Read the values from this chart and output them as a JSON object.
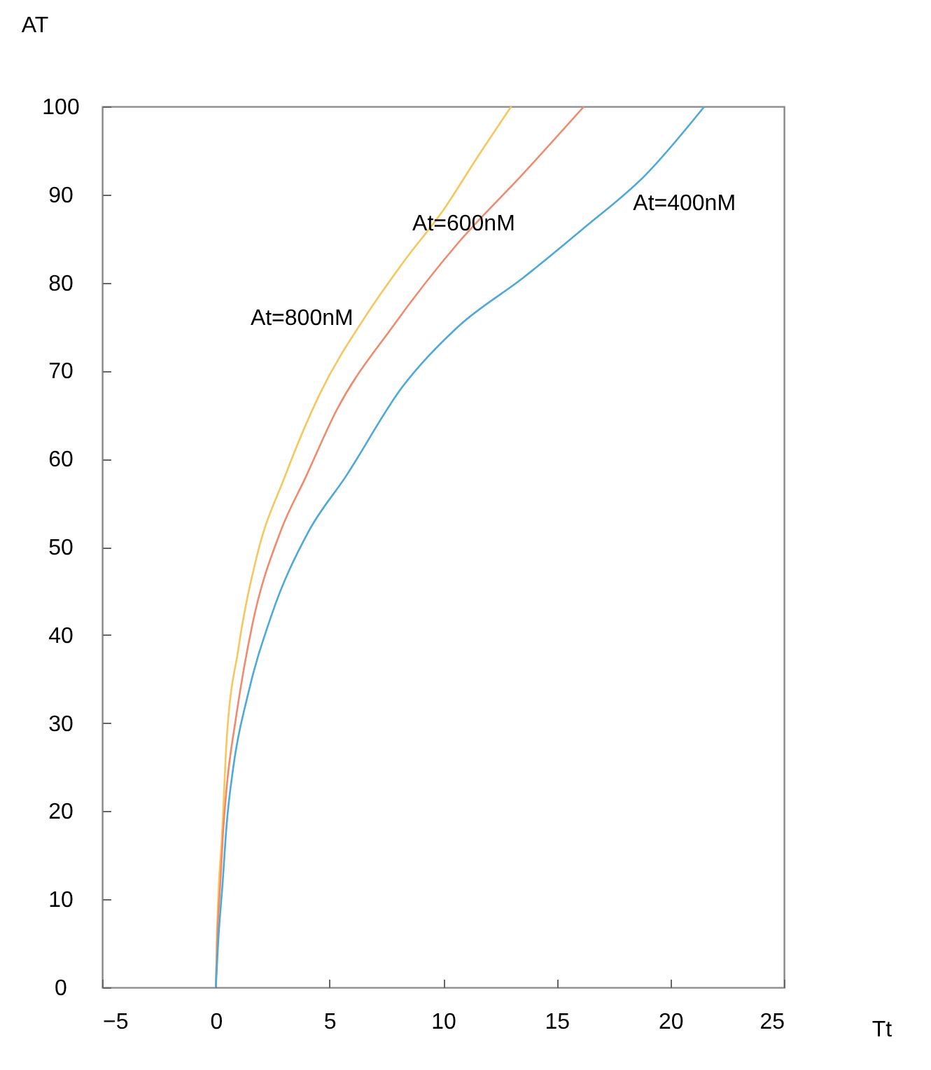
{
  "chart_data": {
    "type": "line",
    "xlabel": "Tt",
    "ylabel": "AT",
    "xlim": [
      -5,
      25
    ],
    "ylim": [
      0,
      100
    ],
    "xticks": [
      -5,
      0,
      5,
      10,
      15,
      20,
      25
    ],
    "yticks": [
      0,
      10,
      20,
      30,
      40,
      50,
      60,
      70,
      80,
      90,
      100
    ],
    "grid": false,
    "legend": false,
    "marker": "none",
    "line_style": "solid",
    "series": [
      {
        "name": "At=800nM",
        "color": "#f5c75c",
        "x": [
          0,
          0.05,
          0.12,
          0.27,
          0.47,
          0.99,
          1.81,
          3.04,
          4.6,
          6.54,
          8.3,
          10.0,
          11.5,
          13.0
        ],
        "values": [
          0,
          6,
          11,
          17.2,
          27.8,
          38.4,
          49.0,
          58.0,
          67.5,
          76.0,
          82.5,
          88.2,
          94.2,
          100
        ]
      },
      {
        "name": "At=600nM",
        "color": "#f08a6c",
        "x": [
          0,
          0.07,
          0.2,
          0.31,
          0.47,
          0.88,
          1.6,
          2.84,
          3.97,
          5.31,
          7.78,
          10.66,
          13.5,
          16.2
        ],
        "values": [
          0,
          6,
          11.9,
          17.2,
          22.5,
          30.5,
          41.1,
          51.7,
          58.0,
          65.5,
          75.0,
          84.5,
          92.3,
          100
        ]
      },
      {
        "name": "At=400nM",
        "color": "#4da9da",
        "x": [
          0,
          0.1,
          0.3,
          0.47,
          0.78,
          1.4,
          2.43,
          4.07,
          5.72,
          8.19,
          10.66,
          13.5,
          16.2,
          18.9,
          21.5
        ],
        "values": [
          0,
          5,
          11.9,
          18.3,
          25.2,
          33.1,
          42.1,
          51.7,
          58.0,
          68.1,
          75.0,
          80.5,
          86.2,
          92.2,
          100
        ]
      }
    ]
  }
}
